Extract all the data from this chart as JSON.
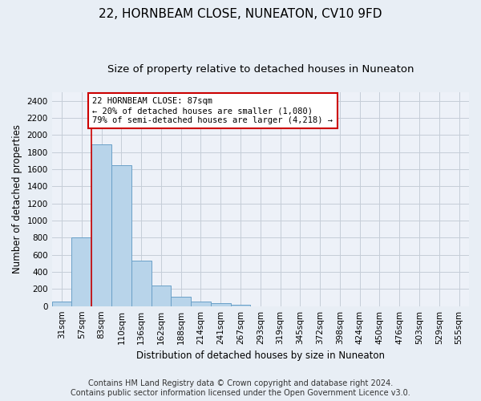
{
  "title": "22, HORNBEAM CLOSE, NUNEATON, CV10 9FD",
  "subtitle": "Size of property relative to detached houses in Nuneaton",
  "xlabel": "Distribution of detached houses by size in Nuneaton",
  "ylabel": "Number of detached properties",
  "categories": [
    "31sqm",
    "57sqm",
    "83sqm",
    "110sqm",
    "136sqm",
    "162sqm",
    "188sqm",
    "214sqm",
    "241sqm",
    "267sqm",
    "293sqm",
    "319sqm",
    "345sqm",
    "372sqm",
    "398sqm",
    "424sqm",
    "450sqm",
    "476sqm",
    "503sqm",
    "529sqm",
    "555sqm"
  ],
  "values": [
    55,
    800,
    1890,
    1650,
    535,
    240,
    110,
    57,
    32,
    18,
    0,
    0,
    0,
    0,
    0,
    0,
    0,
    0,
    0,
    0,
    0
  ],
  "bar_color": "#b8d4ea",
  "bar_edge_color": "#6aa0c8",
  "vline_x_index": 2,
  "vline_color": "#cc0000",
  "annotation_text": "22 HORNBEAM CLOSE: 87sqm\n← 20% of detached houses are smaller (1,080)\n79% of semi-detached houses are larger (4,218) →",
  "annotation_box_color": "#ffffff",
  "annotation_border_color": "#cc0000",
  "ylim": [
    0,
    2500
  ],
  "yticks": [
    0,
    200,
    400,
    600,
    800,
    1000,
    1200,
    1400,
    1600,
    1800,
    2000,
    2200,
    2400
  ],
  "footer_line1": "Contains HM Land Registry data © Crown copyright and database right 2024.",
  "footer_line2": "Contains public sector information licensed under the Open Government Licence v3.0.",
  "bg_color": "#e8eef5",
  "plot_bg_color": "#edf1f8",
  "grid_color": "#c5cdd8",
  "title_fontsize": 11,
  "subtitle_fontsize": 9.5,
  "axis_label_fontsize": 8.5,
  "tick_fontsize": 7.5,
  "annotation_fontsize": 7.5,
  "footer_fontsize": 7
}
